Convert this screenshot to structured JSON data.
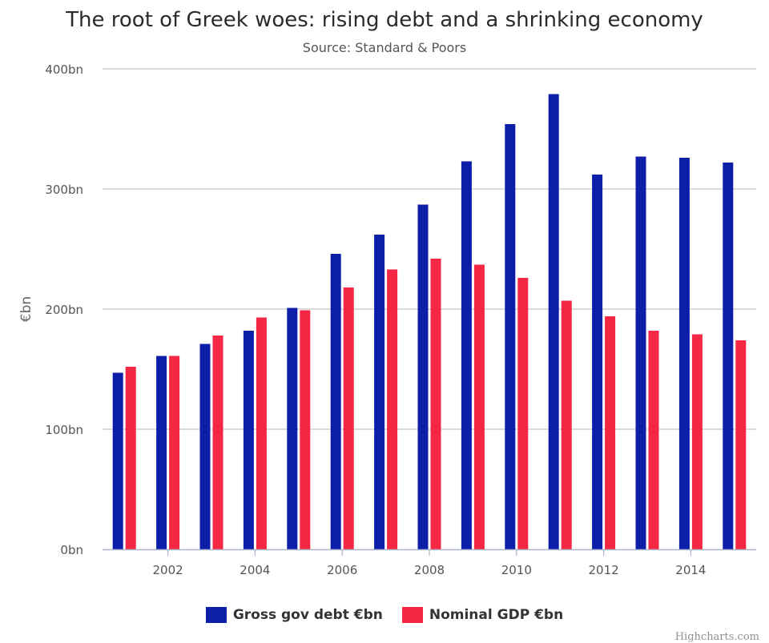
{
  "chart_data": {
    "type": "bar",
    "title": "The root of Greek woes: rising debt and a shrinking economy",
    "subtitle": "Source: Standard & Poors",
    "ylabel": "€bn",
    "xlabel": "",
    "ylim": [
      0,
      400
    ],
    "y_ticks": [
      "0bn",
      "100bn",
      "200bn",
      "300bn",
      "400bn"
    ],
    "y_tick_values": [
      0,
      100,
      200,
      300,
      400
    ],
    "x_tick_labels": [
      "2002",
      "2004",
      "2006",
      "2008",
      "2010",
      "2012",
      "2014"
    ],
    "x_tick_values": [
      2002,
      2004,
      2006,
      2008,
      2010,
      2012,
      2014
    ],
    "categories": [
      2001,
      2002,
      2003,
      2004,
      2005,
      2006,
      2007,
      2008,
      2009,
      2010,
      2011,
      2012,
      2013,
      2014,
      2015
    ],
    "series": [
      {
        "name": "Gross gov debt €bn",
        "color": "#0d1fa8",
        "values": [
          147,
          161,
          171,
          182,
          201,
          246,
          262,
          287,
          323,
          354,
          379,
          312,
          327,
          326,
          322
        ]
      },
      {
        "name": "Nominal GDP €bn",
        "color": "#f62743",
        "values": [
          152,
          161,
          178,
          193,
          199,
          218,
          233,
          242,
          237,
          226,
          207,
          194,
          182,
          179,
          174
        ]
      }
    ],
    "grid": true,
    "legend": "bottom-center"
  },
  "credits": "Highcharts.com"
}
